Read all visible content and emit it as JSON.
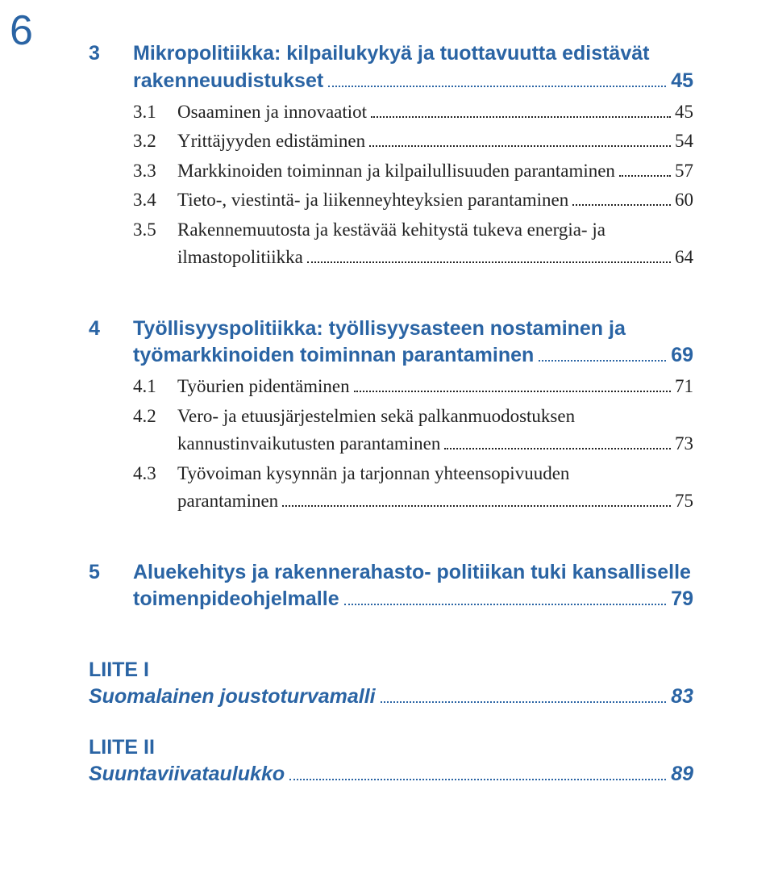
{
  "colors": {
    "heading": "#2a64a4",
    "body": "#222222",
    "pagenum": "#2a64a4"
  },
  "page_number": "6",
  "sections": [
    {
      "num": "3",
      "title_lines": [
        "Mikropolitiikka: kilpailukykyä ja tuottavuutta edistävät",
        "rakenneuudistukset"
      ],
      "page": "45",
      "subs": [
        {
          "num": "3.1",
          "lines": [
            "Osaaminen ja innovaatiot"
          ],
          "page": "45"
        },
        {
          "num": "3.2",
          "lines": [
            "Yrittäjyyden edistäminen"
          ],
          "page": "54"
        },
        {
          "num": "3.3",
          "lines": [
            "Markkinoiden toiminnan ja kilpailullisuuden parantaminen"
          ],
          "page": "57"
        },
        {
          "num": "3.4",
          "lines": [
            "Tieto-, viestintä- ja liikenneyhteyksien parantaminen"
          ],
          "page": "60"
        },
        {
          "num": "3.5",
          "lines": [
            "Rakennemuutosta ja kestävää kehitystä tukeva energia- ja",
            "ilmastopolitiikka"
          ],
          "page": "64"
        }
      ]
    },
    {
      "num": "4",
      "title_lines": [
        "Työllisyyspolitiikka: työllisyysasteen nostaminen ja",
        "työmarkkinoiden toiminnan parantaminen"
      ],
      "page": "69",
      "subs": [
        {
          "num": "4.1",
          "lines": [
            "Työurien pidentäminen"
          ],
          "page": "71"
        },
        {
          "num": "4.2",
          "lines": [
            "Vero- ja etuusjärjestelmien sekä palkanmuodostuksen",
            "kannustinvaikutusten parantaminen"
          ],
          "page": "73"
        },
        {
          "num": "4.3",
          "lines": [
            "Työvoiman kysynnän ja tarjonnan yhteensopivuuden",
            "parantaminen"
          ],
          "page": "75"
        }
      ]
    },
    {
      "num": "5",
      "title_lines": [
        "Aluekehitys ja rakennerahasto- politiikan tuki kansalliselle",
        "toimenpideohjelmalle"
      ],
      "page": "79",
      "subs": []
    }
  ],
  "appendices": [
    {
      "label": "LIITE I",
      "title": "Suomalainen joustoturvamalli",
      "page": "83"
    },
    {
      "label": "LIITE II",
      "title": "Suuntaviivataulukko",
      "page": "89"
    }
  ]
}
